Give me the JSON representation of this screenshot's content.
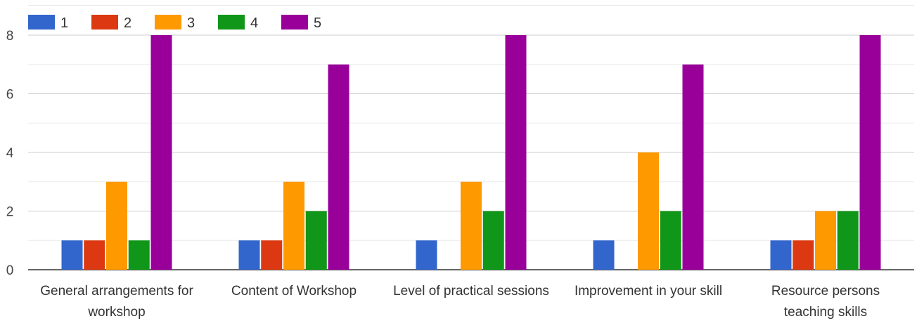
{
  "chart_data": {
    "type": "bar",
    "categories": [
      [
        "General arrangements for",
        "workshop"
      ],
      [
        "Content of Workshop"
      ],
      [
        "Level of practical sessions"
      ],
      [
        "Improvement in your skill"
      ],
      [
        "Resource persons",
        "teaching skills"
      ]
    ],
    "series": [
      {
        "name": "1",
        "color": "#3366cc",
        "values": [
          1,
          1,
          1,
          1,
          1
        ]
      },
      {
        "name": "2",
        "color": "#dc3912",
        "values": [
          1,
          1,
          0,
          0,
          1
        ]
      },
      {
        "name": "3",
        "color": "#ff9900",
        "values": [
          3,
          3,
          3,
          4,
          2
        ]
      },
      {
        "name": "4",
        "color": "#109618",
        "values": [
          1,
          2,
          2,
          2,
          2
        ]
      },
      {
        "name": "5",
        "color": "#990099",
        "values": [
          8,
          7,
          8,
          7,
          8
        ]
      }
    ],
    "ylim": [
      0,
      8
    ],
    "yticks": [
      0,
      2,
      4,
      6,
      8
    ],
    "grid": true,
    "legend_position": "top-left"
  }
}
